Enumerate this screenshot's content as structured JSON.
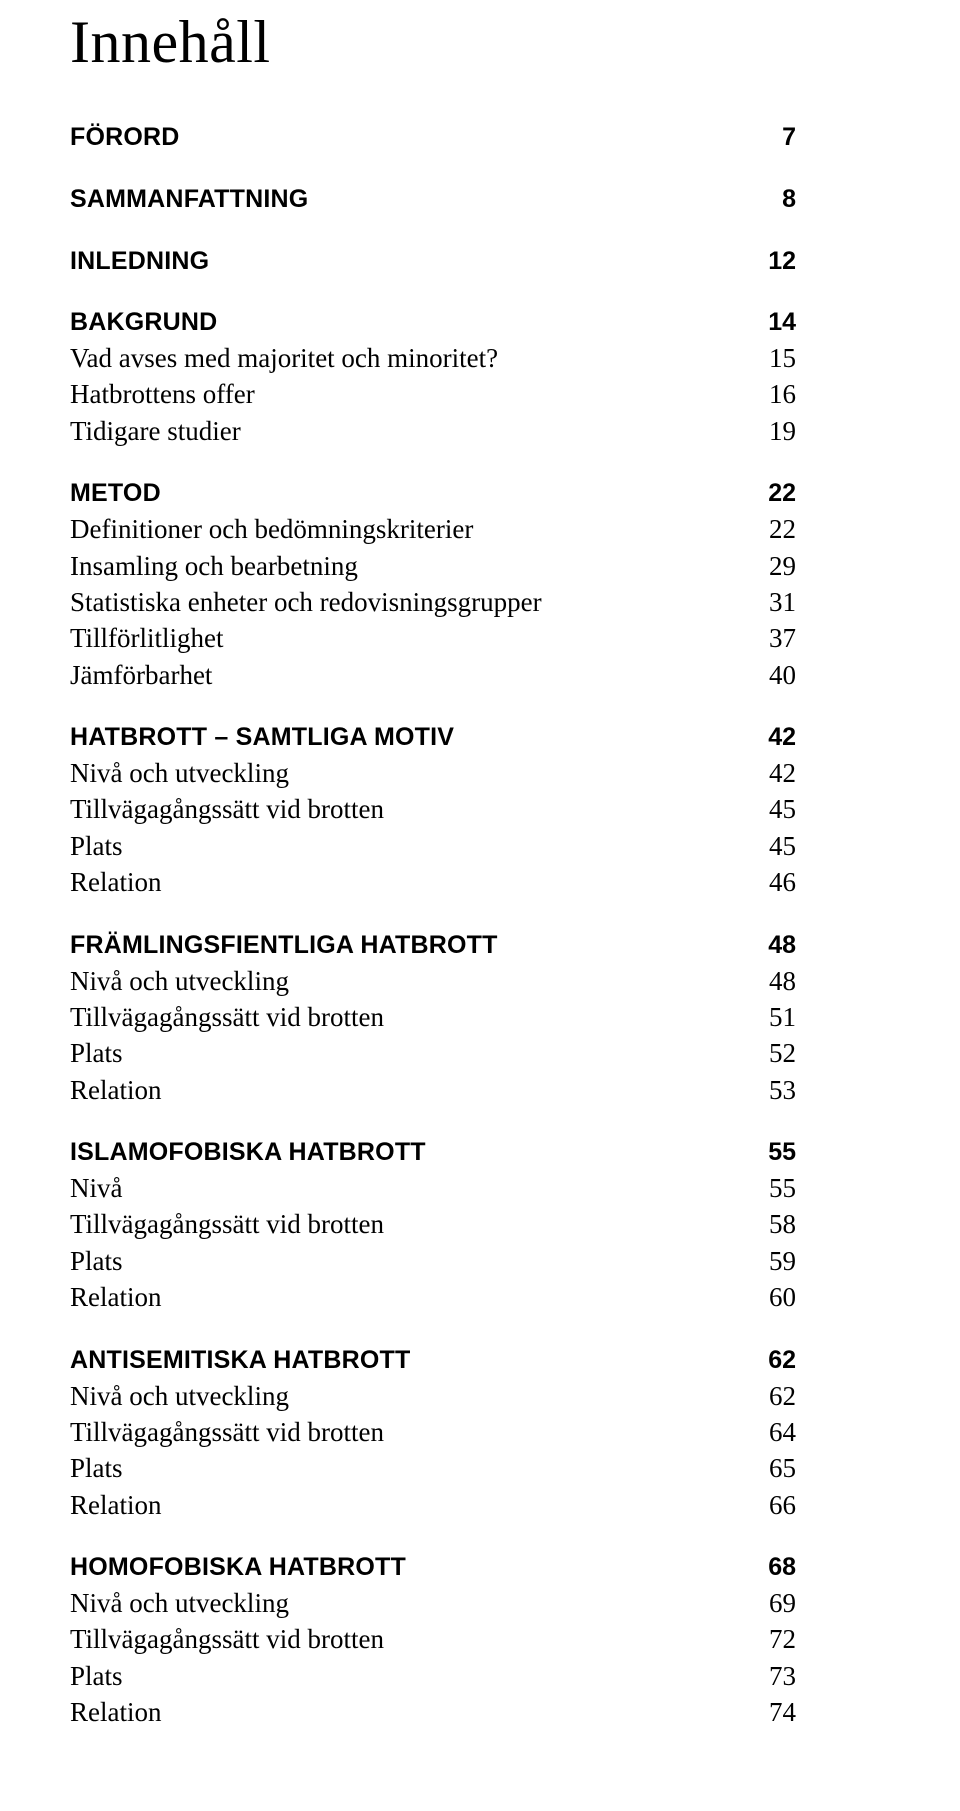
{
  "title": "Innehåll",
  "sections": [
    {
      "heading": {
        "label": "FÖRORD",
        "page": "7"
      },
      "items": []
    },
    {
      "heading": {
        "label": "SAMMANFATTNING",
        "page": "8"
      },
      "items": []
    },
    {
      "heading": {
        "label": "INLEDNING",
        "page": "12"
      },
      "items": []
    },
    {
      "heading": {
        "label": "BAKGRUND",
        "page": "14"
      },
      "items": [
        {
          "label": "Vad avses med majoritet och minoritet?",
          "page": "15"
        },
        {
          "label": "Hatbrottens offer",
          "page": "16"
        },
        {
          "label": "Tidigare studier",
          "page": "19"
        }
      ]
    },
    {
      "heading": {
        "label": "METOD",
        "page": "22"
      },
      "items": [
        {
          "label": "Definitioner och bedömningskriterier",
          "page": "22"
        },
        {
          "label": "Insamling och bearbetning",
          "page": "29"
        },
        {
          "label": "Statistiska enheter och redovisningsgrupper",
          "page": "31"
        },
        {
          "label": "Tillförlitlighet",
          "page": "37"
        },
        {
          "label": "Jämförbarhet",
          "page": "40"
        }
      ]
    },
    {
      "heading": {
        "label": "HATBROTT – SAMTLIGA MOTIV",
        "page": "42"
      },
      "items": [
        {
          "label": "Nivå och utveckling",
          "page": "42"
        },
        {
          "label": "Tillvägagångssätt vid brotten",
          "page": "45"
        },
        {
          "label": "Plats",
          "page": "45"
        },
        {
          "label": "Relation",
          "page": "46"
        }
      ]
    },
    {
      "heading": {
        "label": "FRÄMLINGSFIENTLIGA HATBROTT",
        "page": "48"
      },
      "items": [
        {
          "label": "Nivå och utveckling",
          "page": "48"
        },
        {
          "label": "Tillvägagångssätt vid brotten",
          "page": "51"
        },
        {
          "label": "Plats",
          "page": "52"
        },
        {
          "label": "Relation",
          "page": "53"
        }
      ]
    },
    {
      "heading": {
        "label": "ISLAMOFOBISKA HATBROTT",
        "page": "55"
      },
      "items": [
        {
          "label": "Nivå",
          "page": "55"
        },
        {
          "label": "Tillvägagångssätt vid brotten",
          "page": "58"
        },
        {
          "label": "Plats",
          "page": "59"
        },
        {
          "label": "Relation",
          "page": "60"
        }
      ]
    },
    {
      "heading": {
        "label": "ANTISEMITISKA HATBROTT",
        "page": "62"
      },
      "items": [
        {
          "label": "Nivå och utveckling",
          "page": "62"
        },
        {
          "label": "Tillvägagångssätt vid brotten",
          "page": "64"
        },
        {
          "label": "Plats",
          "page": "65"
        },
        {
          "label": "Relation",
          "page": "66"
        }
      ]
    },
    {
      "heading": {
        "label": "HOMOFOBISKA HATBROTT",
        "page": "68"
      },
      "items": [
        {
          "label": "Nivå och utveckling",
          "page": "69"
        },
        {
          "label": "Tillvägagångssätt vid brotten",
          "page": "72"
        },
        {
          "label": "Plats",
          "page": "73"
        },
        {
          "label": "Relation",
          "page": "74"
        }
      ]
    }
  ]
}
